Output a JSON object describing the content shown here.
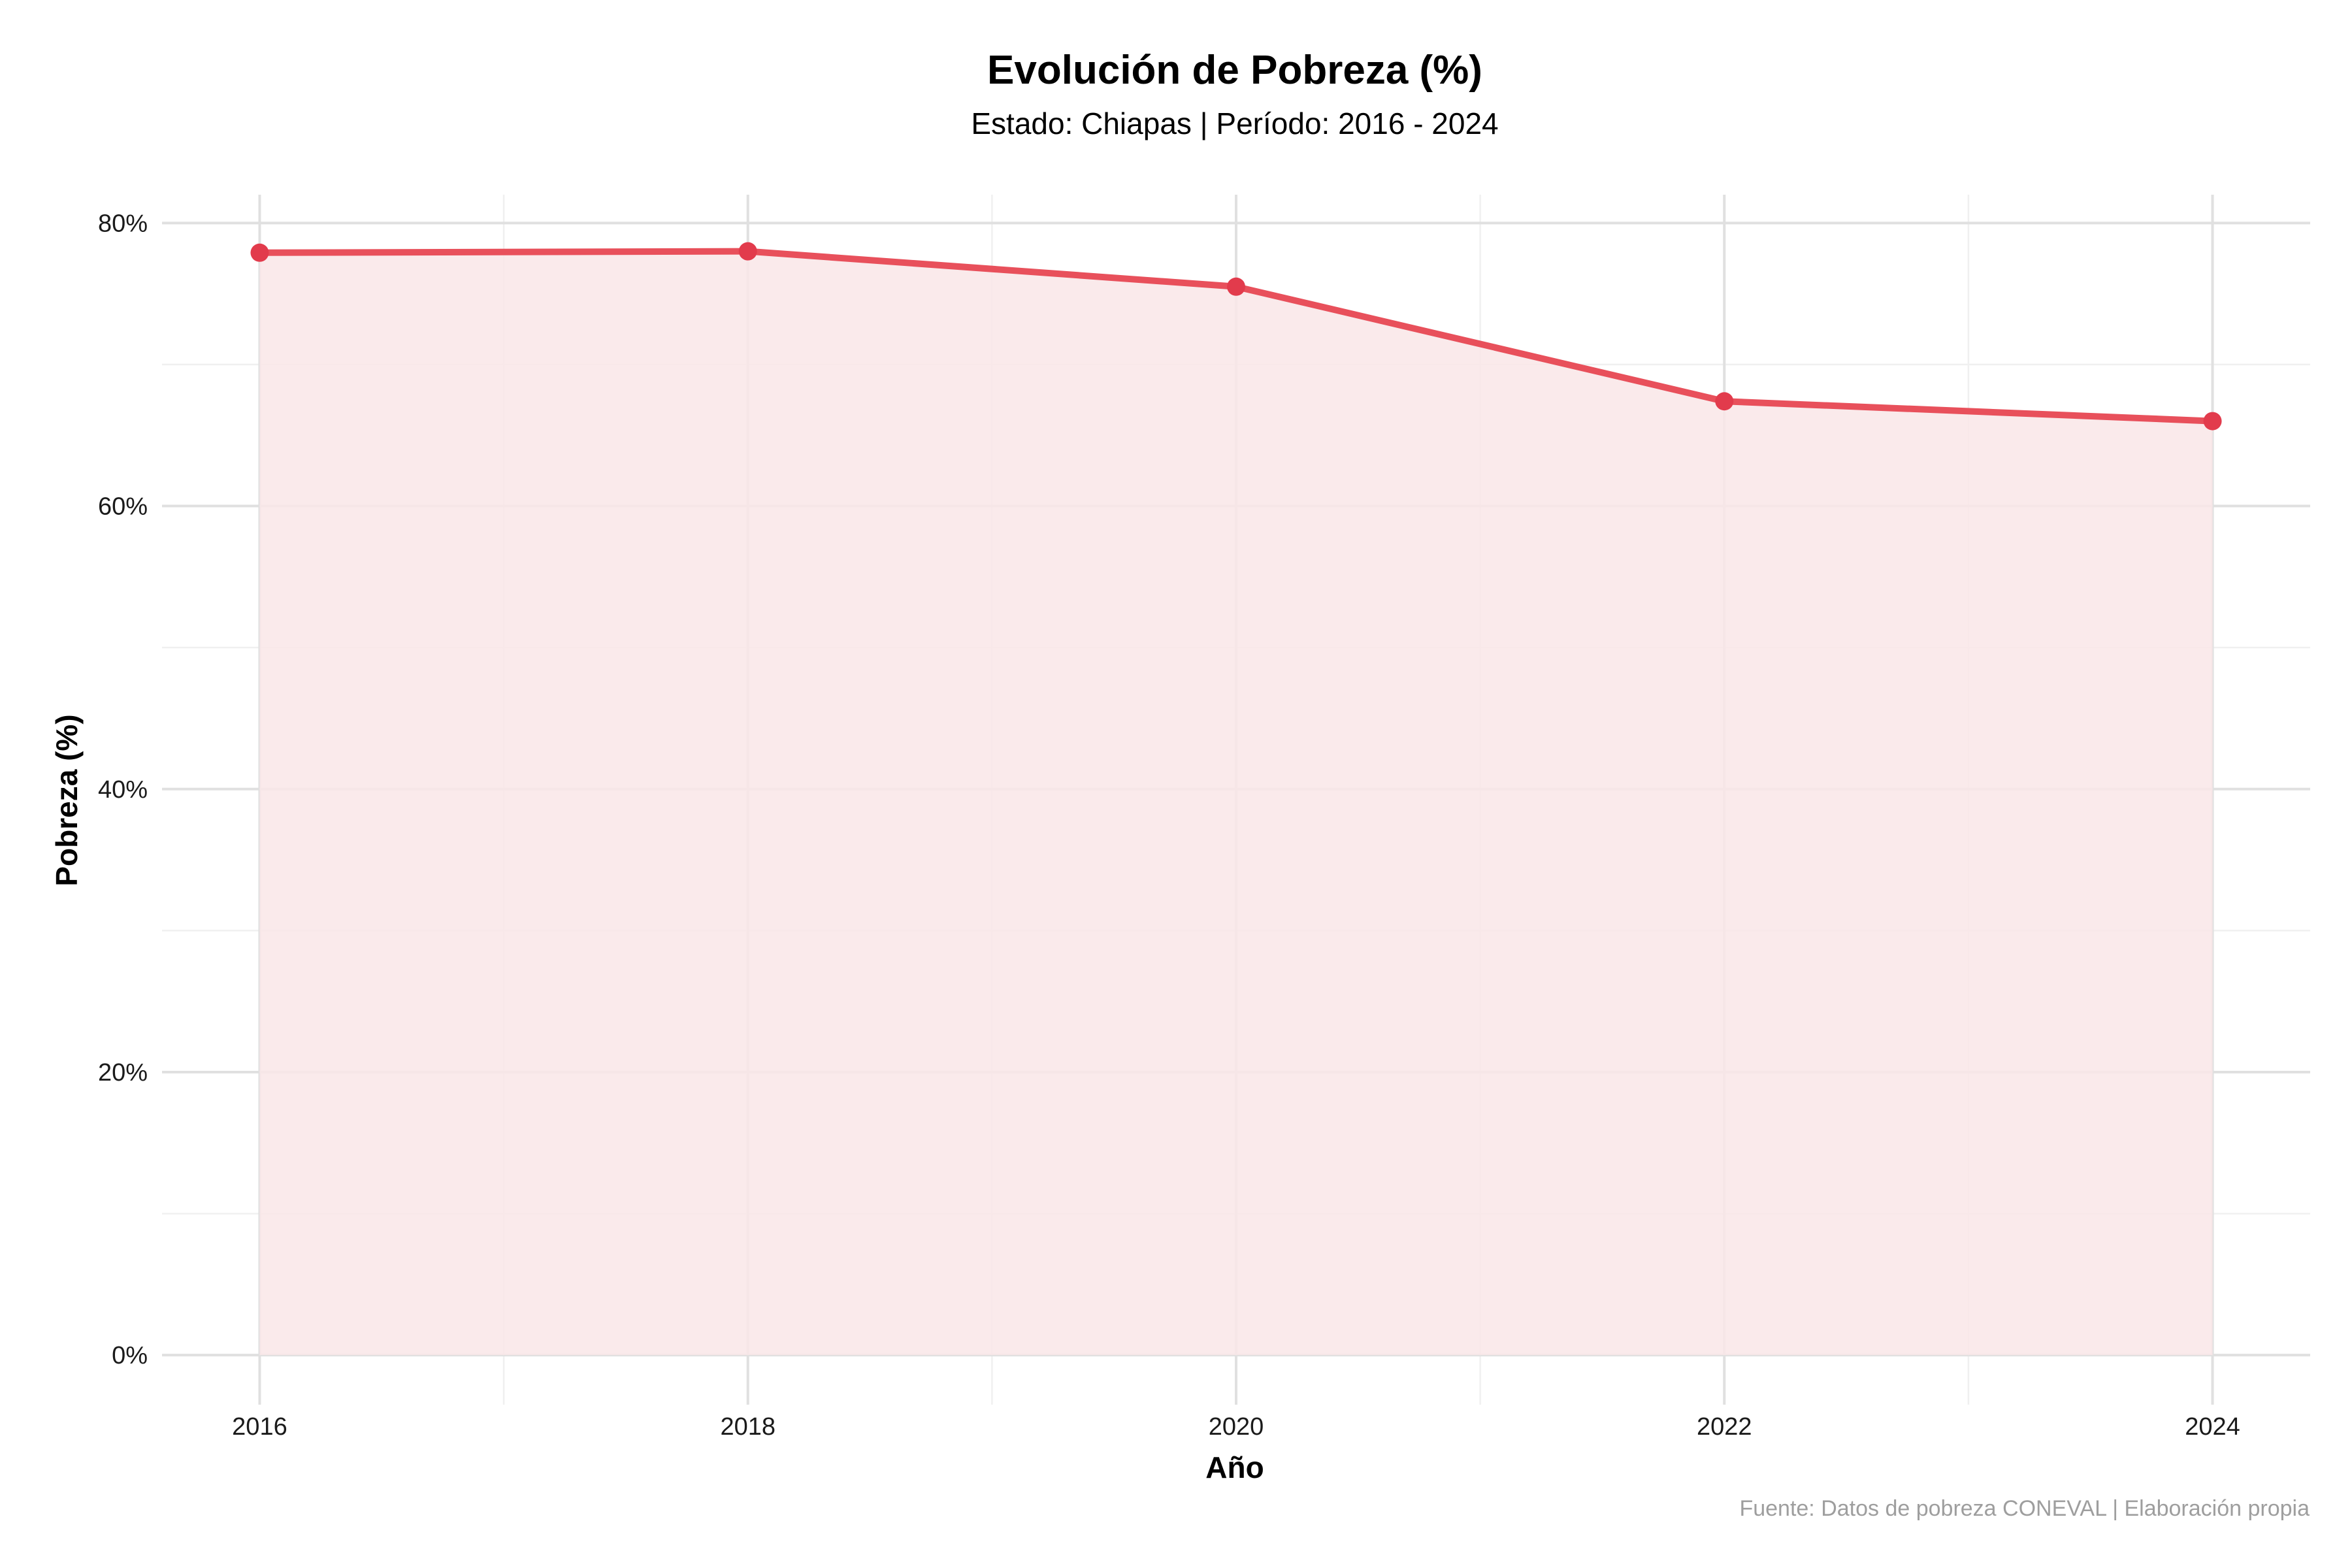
{
  "chart_data": {
    "type": "area",
    "title": "Evolución de Pobreza (%)",
    "subtitle": "Estado: Chiapas | Período: 2016 - 2024",
    "xlabel": "Año",
    "ylabel": "Pobreza (%)",
    "caption": "Fuente: Datos de pobreza CONEVAL | Elaboración propia",
    "x": [
      2016,
      2018,
      2020,
      2022,
      2024
    ],
    "x_tick_labels": [
      "2016",
      "2018",
      "2020",
      "2022",
      "2024"
    ],
    "y_tick_values": [
      0,
      20,
      40,
      60,
      80
    ],
    "y_tick_labels": [
      "0%",
      "20%",
      "40%",
      "60%",
      "80%"
    ],
    "xlim": [
      2015.6,
      2024.4
    ],
    "ylim": [
      -3.5,
      82
    ],
    "grid": true,
    "legend": "none",
    "series": [
      {
        "values": [
          77.9,
          78.0,
          75.5,
          67.4,
          66.0
        ],
        "line_color": "#e8505b",
        "point_color": "#e23b4c",
        "fill_color": "#f9e6e8"
      }
    ]
  }
}
